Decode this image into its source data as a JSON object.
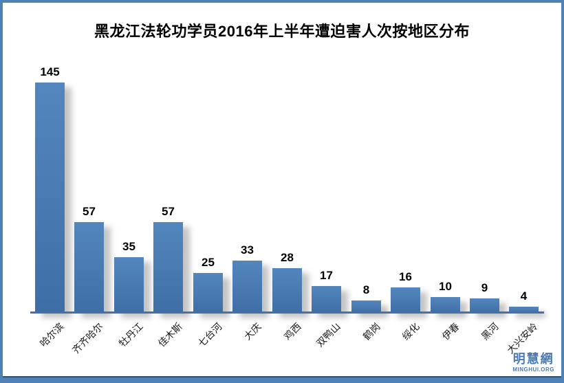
{
  "title": "黑龙江法轮功学员2016年上半年遭迫害人次按地区分布",
  "chart_data": {
    "type": "bar",
    "title": "黑龙江法轮功学员2016年上半年遭迫害人次按地区分布",
    "categories": [
      "哈尔滨",
      "齐齐哈尔",
      "牡丹江",
      "佳木斯",
      "七台河",
      "大庆",
      "鸡西",
      "双鸭山",
      "鹤岗",
      "绥化",
      "伊春",
      "黑河",
      "大兴安岭"
    ],
    "values": [
      145,
      57,
      35,
      57,
      25,
      33,
      28,
      17,
      8,
      16,
      10,
      9,
      4
    ],
    "xlabel": "",
    "ylabel": "",
    "ylim": [
      0,
      150
    ],
    "grid": false,
    "legend": false,
    "value_labels_shown": true,
    "category_label_rotation_deg": -45,
    "colors": {
      "bar_gradient_top": "#5486BE",
      "bar_gradient_bottom": "#3E6EA5",
      "axis": "#4472A8",
      "value_label": "#000000",
      "frame": "#4E81B5",
      "frame_dark": "#24517F"
    }
  },
  "watermark": {
    "name": "明慧網",
    "site": "MINGHUI.ORG",
    "color": "#4A7AB3"
  }
}
